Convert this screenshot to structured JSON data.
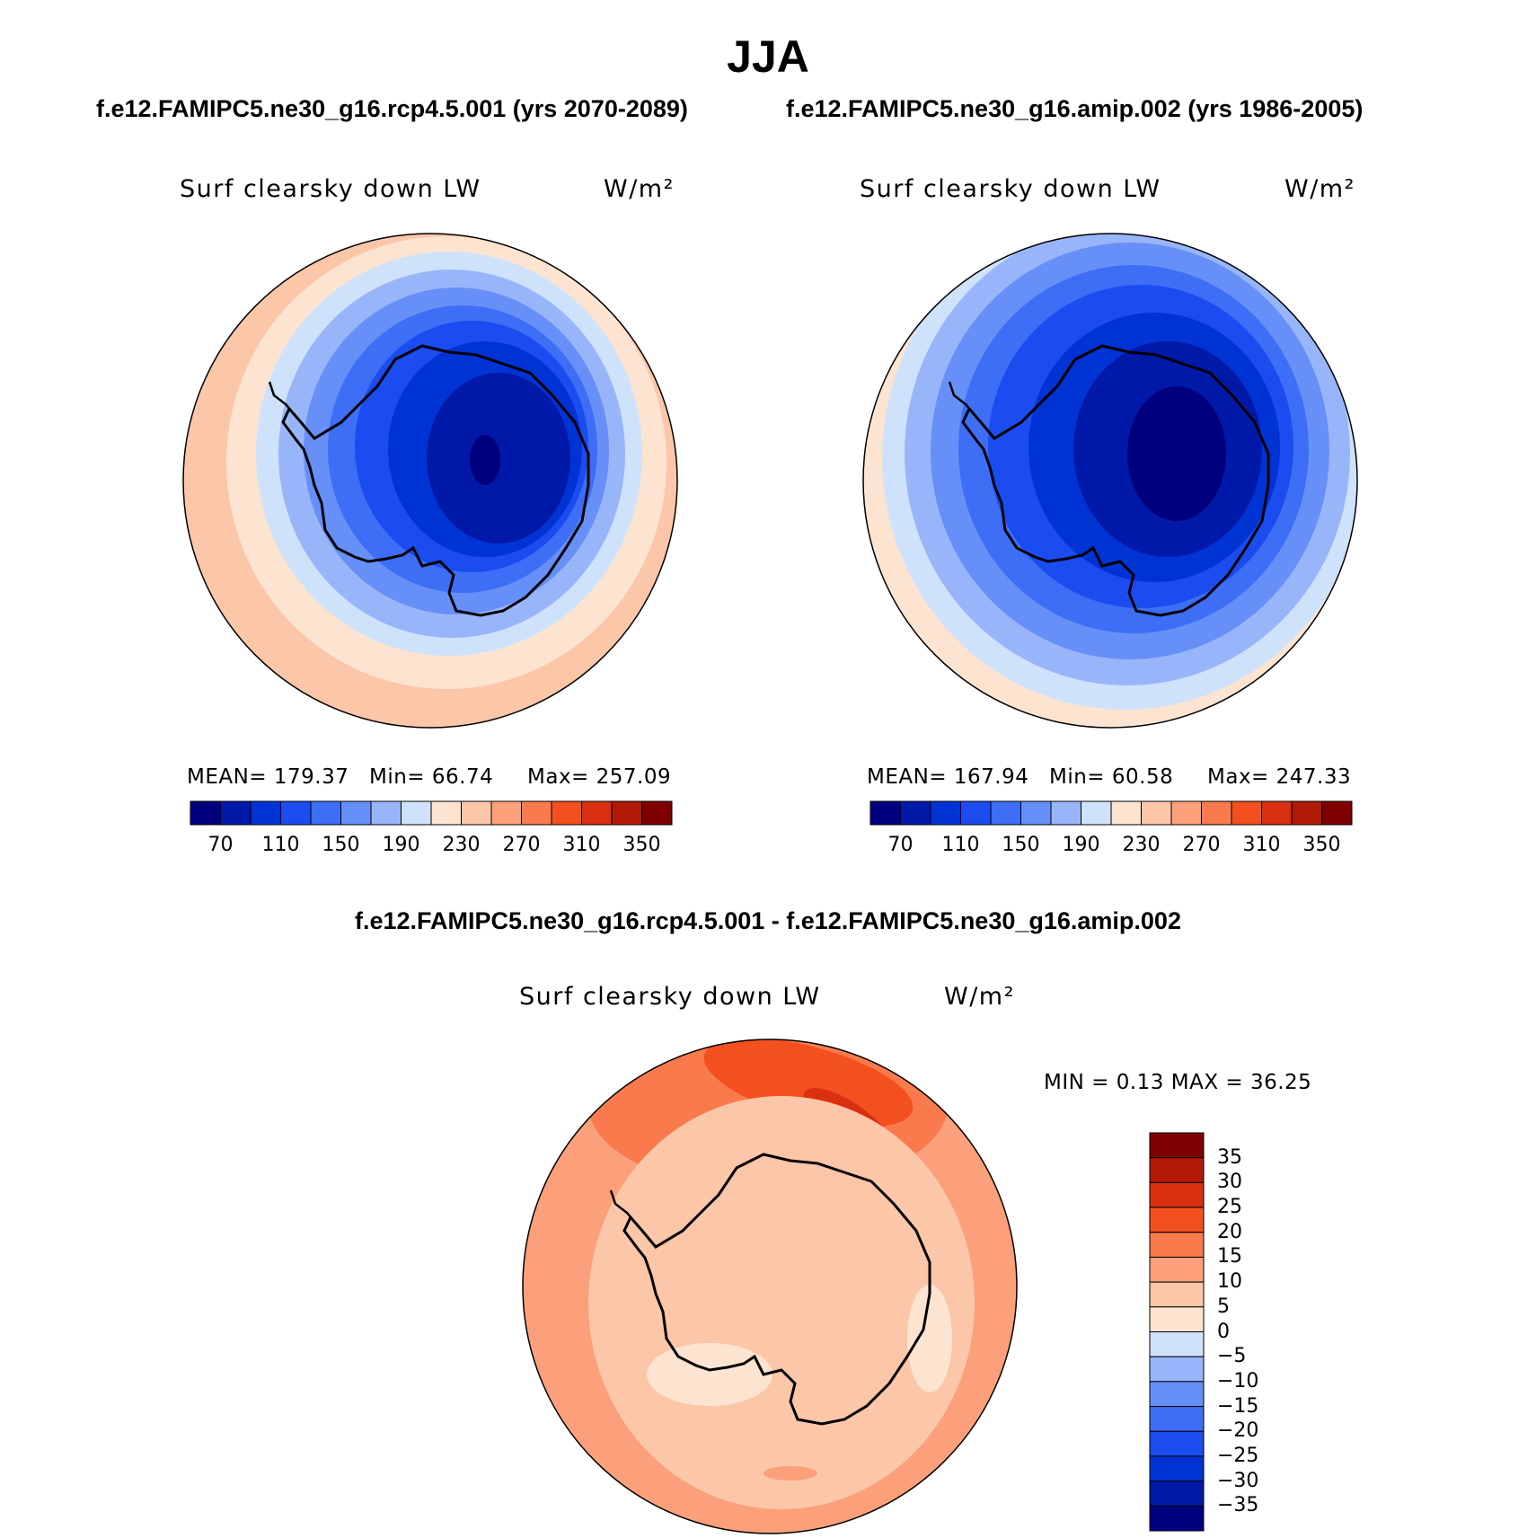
{
  "figure": {
    "title": "JJA",
    "case_left": "f.e12.FAMIPC5.ne30_g16.rcp4.5.001 (yrs 2070-2089)",
    "case_right": "f.e12.FAMIPC5.ne30_g16.amip.002 (yrs 1986-2005)",
    "diff_title": "f.e12.FAMIPC5.ne30_g16.rcp4.5.001 - f.e12.FAMIPC5.ne30_g16.amip.002"
  },
  "panels": {
    "left": {
      "variable": "Surf clearsky down LW",
      "units": "W/m²",
      "mean": "MEAN= 179.37",
      "min": "Min=   66.74",
      "max": "Max= 257.09"
    },
    "right": {
      "variable": "Surf clearsky down LW",
      "units": "W/m²",
      "mean": "MEAN= 167.94",
      "min": "Min=   60.58",
      "max": "Max= 247.33"
    },
    "diff": {
      "variable": "Surf clearsky down LW",
      "units": "W/m²",
      "min_max": "MIN =    0.13 MAX =   36.25"
    }
  },
  "colorbar_abs": {
    "colors": [
      "#00007f",
      "#0019a8",
      "#0033d4",
      "#1a4cf0",
      "#3d6ef5",
      "#6690f7",
      "#99b5fa",
      "#cfe2fc",
      "#fde4d0",
      "#fcc6a8",
      "#fba07a",
      "#f97a4d",
      "#f4501f",
      "#d83010",
      "#b31a05",
      "#7f0000"
    ],
    "tick_labels": [
      "70",
      "110",
      "150",
      "190",
      "230",
      "270",
      "310",
      "350"
    ]
  },
  "colorbar_diff": {
    "colors": [
      "#00007f",
      "#0019a8",
      "#0033d4",
      "#1a4cf0",
      "#3d6ef5",
      "#6690f7",
      "#99b5fa",
      "#cfe2fc",
      "#fde4d0",
      "#fcc6a8",
      "#fba07a",
      "#f97a4d",
      "#f4501f",
      "#d83010",
      "#b31a05",
      "#7f0000"
    ],
    "tick_labels": [
      "35",
      "30",
      "25",
      "20",
      "15",
      "10",
      "5",
      "0",
      "−5",
      "−10",
      "−15",
      "−20",
      "−25",
      "−30",
      "−35"
    ]
  }
}
